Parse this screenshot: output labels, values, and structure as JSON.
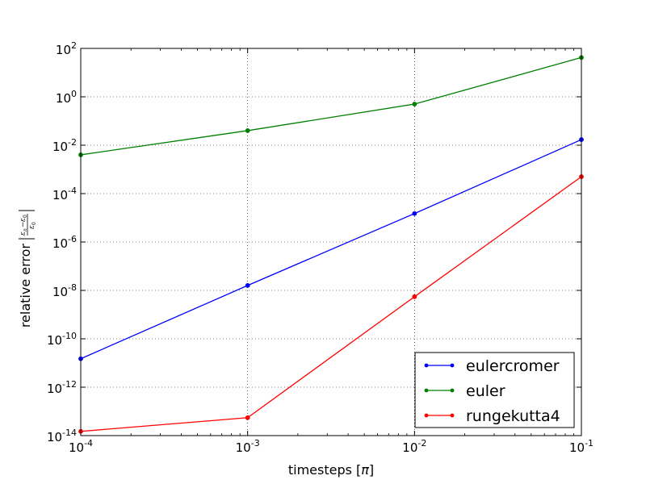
{
  "chart_data": {
    "type": "line",
    "xscale": "log",
    "yscale": "log",
    "xlabel_prefix": "timesteps [",
    "xlabel_symbol": "π",
    "xlabel_suffix": "]",
    "ylabel_prefix": "relative error",
    "xlim": [
      0.0001,
      0.1
    ],
    "ylim": [
      1e-14,
      100
    ],
    "grid": true,
    "legend_position": "lower-right",
    "x_ticks": [
      {
        "value": 0.0001,
        "base": "10",
        "exp": "-4"
      },
      {
        "value": 0.001,
        "base": "10",
        "exp": "-3"
      },
      {
        "value": 0.01,
        "base": "10",
        "exp": "-2"
      },
      {
        "value": 0.1,
        "base": "10",
        "exp": "-1"
      }
    ],
    "y_ticks": [
      {
        "value": 100,
        "base": "10",
        "exp": "2"
      },
      {
        "value": 1,
        "base": "10",
        "exp": "0"
      },
      {
        "value": 0.01,
        "base": "10",
        "exp": "-2"
      },
      {
        "value": 0.0001,
        "base": "10",
        "exp": "-4"
      },
      {
        "value": 1e-06,
        "base": "10",
        "exp": "-6"
      },
      {
        "value": 1e-08,
        "base": "10",
        "exp": "-8"
      },
      {
        "value": 1e-10,
        "base": "10",
        "exp": "-10"
      },
      {
        "value": 1e-12,
        "base": "10",
        "exp": "-12"
      },
      {
        "value": 1e-14,
        "base": "10",
        "exp": "-14"
      }
    ],
    "x": [
      0.0001,
      0.001,
      0.01,
      0.1
    ],
    "series": [
      {
        "name": "eulercromer",
        "color": "#0000ff",
        "values": [
          1.5e-11,
          1.6e-08,
          1.5e-05,
          0.017
        ]
      },
      {
        "name": "euler",
        "color": "#008000",
        "values": [
          0.004,
          0.04,
          0.5,
          42
        ]
      },
      {
        "name": "rungekutta4",
        "color": "#ff0000",
        "values": [
          1.5e-14,
          5.5e-14,
          5.5e-09,
          0.0005
        ]
      }
    ]
  }
}
